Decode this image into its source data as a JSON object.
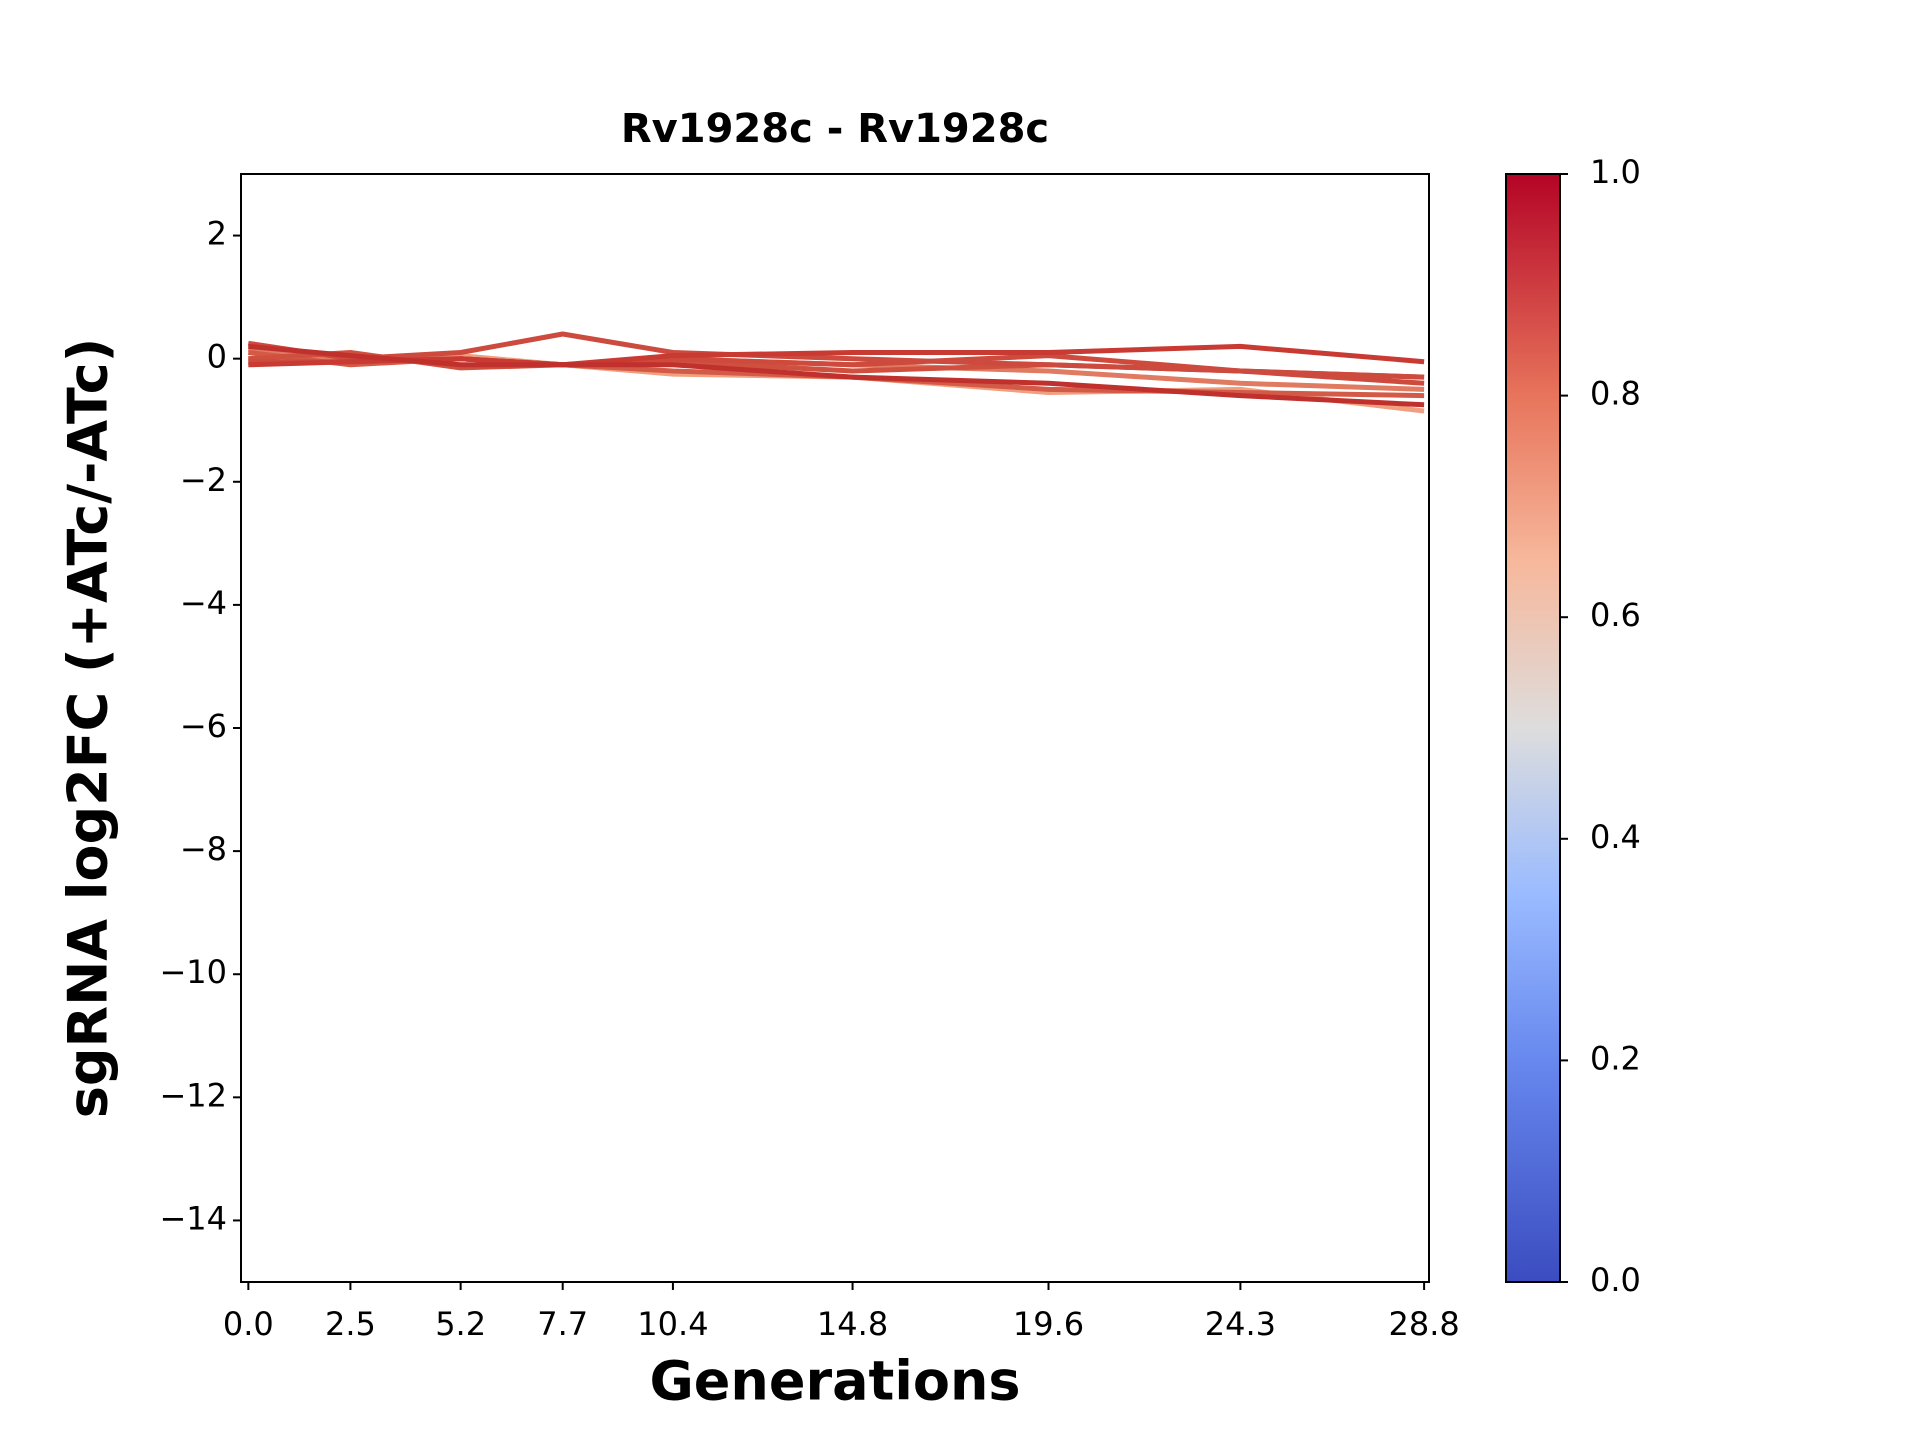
{
  "chart_data": {
    "type": "line",
    "title": "Rv1928c - Rv1928c",
    "x_label": "Generations",
    "y_label": "sgRNA log2FC (+ATc/-ATc)",
    "x": [
      0,
      2.5,
      5.2,
      7.7,
      10.4,
      14.8,
      19.6,
      24.3,
      28.8
    ],
    "xlim": [
      -0.18,
      28.92
    ],
    "xticks": [
      {
        "value": 0,
        "label": "0.0"
      },
      2.5,
      5.2,
      7.7,
      10.4,
      14.8,
      19.6,
      24.3,
      28.8
    ],
    "ylim": [
      -15,
      3
    ],
    "yticks": [
      {
        "value": -14,
        "label": "−14"
      },
      {
        "value": -12,
        "label": "−12"
      },
      {
        "value": -10,
        "label": "−10"
      },
      {
        "value": -8,
        "label": "−8"
      },
      {
        "value": -6,
        "label": "−6"
      },
      {
        "value": -4,
        "label": "−4"
      },
      {
        "value": -2,
        "label": "−2"
      },
      0,
      2
    ],
    "series": [
      {
        "color": "#f0a080",
        "values": [
          0.0,
          0.0,
          0.05,
          -0.1,
          -0.25,
          -0.3,
          -0.55,
          -0.5,
          -0.85
        ]
      },
      {
        "color": "#e07a60",
        "values": [
          0.15,
          0.0,
          0.0,
          -0.1,
          0.0,
          -0.1,
          -0.2,
          -0.4,
          -0.5
        ]
      },
      {
        "color": "#d45a48",
        "values": [
          0.1,
          -0.1,
          0.0,
          -0.1,
          -0.2,
          -0.3,
          -0.5,
          -0.55,
          -0.6
        ]
      },
      {
        "color": "#d0503f",
        "values": [
          0.0,
          0.1,
          -0.15,
          -0.1,
          -0.05,
          -0.2,
          -0.1,
          -0.2,
          -0.3
        ]
      },
      {
        "color": "#cd4a3d",
        "values": [
          -0.05,
          -0.05,
          0.0,
          -0.1,
          0.0,
          -0.1,
          0.05,
          -0.2,
          -0.4
        ]
      },
      {
        "color": "#cc4a3e",
        "values": [
          0.25,
          0.0,
          0.1,
          0.4,
          0.1,
          0.0,
          -0.1,
          -0.2,
          -0.3
        ]
      },
      {
        "color": "#c83a32",
        "values": [
          -0.1,
          -0.05,
          0.0,
          -0.1,
          0.05,
          0.1,
          0.1,
          0.2,
          -0.05
        ]
      },
      {
        "color": "#c0302c",
        "values": [
          0.2,
          0.05,
          -0.1,
          -0.1,
          -0.1,
          -0.3,
          -0.4,
          -0.6,
          -0.75
        ]
      }
    ],
    "colorbar": {
      "lim": [
        0,
        1
      ],
      "ticks": [
        {
          "value": 0,
          "label": "0.0"
        },
        0.2,
        0.4,
        0.6,
        0.8,
        {
          "value": 1,
          "label": "1.0"
        }
      ]
    }
  }
}
